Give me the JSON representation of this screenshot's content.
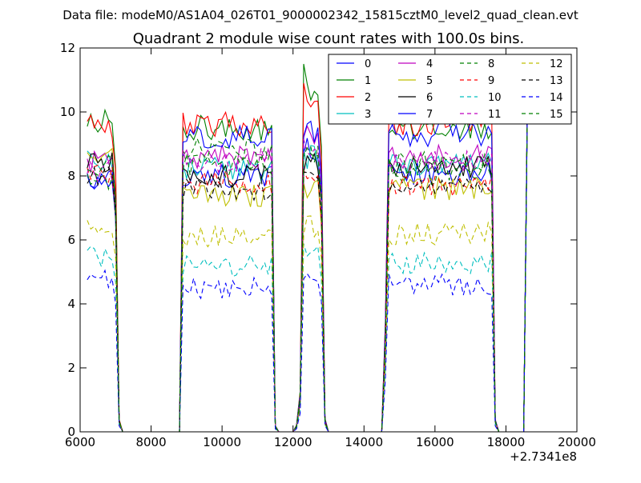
{
  "figure": {
    "suptitle": "Data file: modeM0/AS1A04_026T01_9000002342_15815cztM0_level2_quad_clean.evt"
  },
  "chart_data": {
    "type": "line",
    "title": "Quadrant 2 module wise count rates with 100.0s bins.",
    "xlabel": "",
    "ylabel": "",
    "x_offset_label": "+2.7341e8",
    "xlim": [
      6000,
      20000
    ],
    "ylim": [
      0,
      12
    ],
    "x_ticks": [
      6000,
      8000,
      10000,
      12000,
      14000,
      16000,
      18000,
      20000
    ],
    "x_tick_labels": [
      "6000",
      "8000",
      "10000",
      "12000",
      "14000",
      "16000",
      "18000",
      "20000"
    ],
    "y_ticks": [
      0,
      2,
      4,
      6,
      8,
      10,
      12
    ],
    "y_tick_labels": [
      "0",
      "2",
      "4",
      "6",
      "8",
      "10",
      "12"
    ],
    "grid": false,
    "legend_position": "top-right",
    "legend_columns": 4,
    "x_step": 100,
    "segments": [
      {
        "x_start": 6200,
        "x_end": 7000,
        "levels": [
          7.9,
          9.7,
          9.6,
          8.4,
          8.4,
          8.6,
          8.5,
          7.8,
          7.9,
          8.0,
          5.5,
          8.2,
          6.4,
          8.0,
          4.7,
          8.4
        ]
      },
      {
        "x_start": 8900,
        "x_end": 11400,
        "levels": [
          8.0,
          9.5,
          9.6,
          8.2,
          8.6,
          7.4,
          8.0,
          9.2,
          8.8,
          7.8,
          5.2,
          8.5,
          6.1,
          7.6,
          4.5,
          8.3
        ]
      },
      {
        "x_start": 12200,
        "x_end": 12800,
        "levels": [
          8.8,
          10.5,
          10.0,
          8.6,
          9.2,
          7.6,
          8.5,
          9.4,
          8.6,
          7.8,
          5.6,
          8.9,
          6.4,
          8.0,
          4.8,
          8.7
        ]
      },
      {
        "x_start": 14700,
        "x_end": 17600,
        "levels": [
          8.1,
          9.5,
          9.6,
          8.4,
          8.6,
          7.6,
          8.3,
          9.3,
          8.1,
          7.7,
          5.3,
          8.5,
          6.2,
          7.8,
          4.6,
          8.4
        ]
      }
    ],
    "zero_ranges": [
      [
        7100,
        8800
      ],
      [
        11600,
        12100
      ],
      [
        13000,
        14600
      ],
      [
        17700,
        18500
      ]
    ],
    "final_spike": {
      "x": 18600,
      "y": 10.0
    },
    "peaks": [
      {
        "x": 12300,
        "series": [
          {
            "index": 1,
            "value": 11.5
          },
          {
            "index": 2,
            "value": 10.9
          }
        ]
      }
    ],
    "series": [
      {
        "name": "0",
        "color": "#0000ff",
        "dash": "solid"
      },
      {
        "name": "1",
        "color": "#008000",
        "dash": "solid"
      },
      {
        "name": "2",
        "color": "#ff0000",
        "dash": "solid"
      },
      {
        "name": "3",
        "color": "#00bfbf",
        "dash": "solid"
      },
      {
        "name": "4",
        "color": "#bf00bf",
        "dash": "solid"
      },
      {
        "name": "5",
        "color": "#bfbf00",
        "dash": "solid"
      },
      {
        "name": "6",
        "color": "#000000",
        "dash": "solid"
      },
      {
        "name": "7",
        "color": "#0000ff",
        "dash": "solid"
      },
      {
        "name": "8",
        "color": "#008000",
        "dash": "dashed"
      },
      {
        "name": "9",
        "color": "#ff0000",
        "dash": "dashed"
      },
      {
        "name": "10",
        "color": "#00bfbf",
        "dash": "dashed"
      },
      {
        "name": "11",
        "color": "#bf00bf",
        "dash": "dashed"
      },
      {
        "name": "12",
        "color": "#bfbf00",
        "dash": "dashed"
      },
      {
        "name": "13",
        "color": "#000000",
        "dash": "dashed"
      },
      {
        "name": "14",
        "color": "#0000ff",
        "dash": "dashed"
      },
      {
        "name": "15",
        "color": "#008000",
        "dash": "dashed"
      }
    ]
  }
}
